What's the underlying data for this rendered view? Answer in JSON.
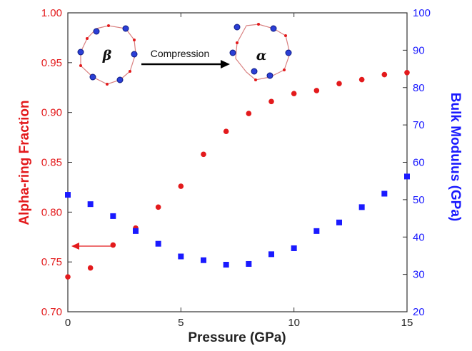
{
  "chart_data": {
    "type": "scatter",
    "title": "",
    "xlabel": "Pressure (GPa)",
    "ylabel_left": "Alpha-ring Fraction",
    "ylabel_right": "Bulk Modulus (GPa)",
    "xlim": [
      0,
      15
    ],
    "ylim_left": [
      0.7,
      1.0
    ],
    "ylim_right": [
      20,
      100
    ],
    "x_ticks": [
      "0",
      "5",
      "10",
      "15"
    ],
    "y_ticks_left": [
      "0.70",
      "0.75",
      "0.80",
      "0.85",
      "0.90",
      "0.95",
      "1.00"
    ],
    "y_ticks_right": [
      "20",
      "30",
      "40",
      "50",
      "60",
      "70",
      "80",
      "90",
      "100"
    ],
    "grid": false,
    "legend": "none",
    "series": [
      {
        "axis": "left",
        "marker": "circle",
        "color": "#e31a1c",
        "x": [
          0,
          1,
          2,
          3,
          4,
          5,
          6,
          7,
          8,
          9,
          10,
          11,
          12,
          13,
          14,
          15
        ],
        "values": [
          0.735,
          0.744,
          0.767,
          0.784,
          0.805,
          0.826,
          0.858,
          0.881,
          0.899,
          0.911,
          0.919,
          0.922,
          0.929,
          0.933,
          0.938,
          0.94
        ]
      },
      {
        "axis": "right",
        "marker": "square",
        "color": "#1a1aff",
        "x": [
          0,
          1,
          2,
          3,
          4,
          5,
          6,
          7,
          8,
          9,
          10,
          11,
          12,
          13,
          14,
          15
        ],
        "values": [
          51.3,
          48.8,
          45.6,
          41.6,
          38.2,
          34.8,
          33.8,
          32.6,
          32.8,
          35.4,
          37.0,
          41.6,
          43.9,
          48.0,
          51.6,
          56.2
        ]
      }
    ],
    "annotations": {
      "arrow_series_label": "",
      "inset_left_symbol": "β",
      "inset_right_symbol": "α",
      "inset_arrow_label": "Compression"
    }
  }
}
